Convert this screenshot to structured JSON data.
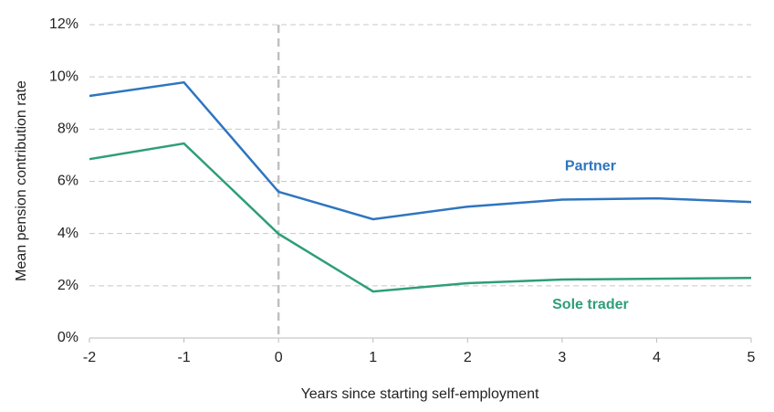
{
  "chart_data": {
    "type": "line",
    "x_label": "Years since starting self-employment",
    "y_label": "Mean pension contribution rate",
    "x": [
      -2,
      -1,
      0,
      1,
      2,
      3,
      4,
      5
    ],
    "series": [
      {
        "name": "Partner",
        "color": "#2e75c0",
        "values": [
          9.27,
          9.79,
          5.6,
          4.55,
          5.03,
          5.3,
          5.35,
          5.21
        ]
      },
      {
        "name": "Sole trader",
        "color": "#2e9e78",
        "values": [
          6.85,
          7.45,
          3.99,
          1.78,
          2.1,
          2.24,
          2.27,
          2.3
        ]
      }
    ],
    "xlim": [
      -2,
      5
    ],
    "xticks": [
      -2,
      -1,
      0,
      1,
      2,
      3,
      4,
      5
    ],
    "ylim": [
      0,
      12
    ],
    "yticks": [
      {
        "value": 0,
        "label": "0%"
      },
      {
        "value": 2,
        "label": "2%"
      },
      {
        "value": 4,
        "label": "4%"
      },
      {
        "value": 6,
        "label": "6%"
      },
      {
        "value": 8,
        "label": "8%"
      },
      {
        "value": 10,
        "label": "10%"
      },
      {
        "value": 12,
        "label": "12%"
      }
    ],
    "grid": true,
    "vline_x": 0
  }
}
